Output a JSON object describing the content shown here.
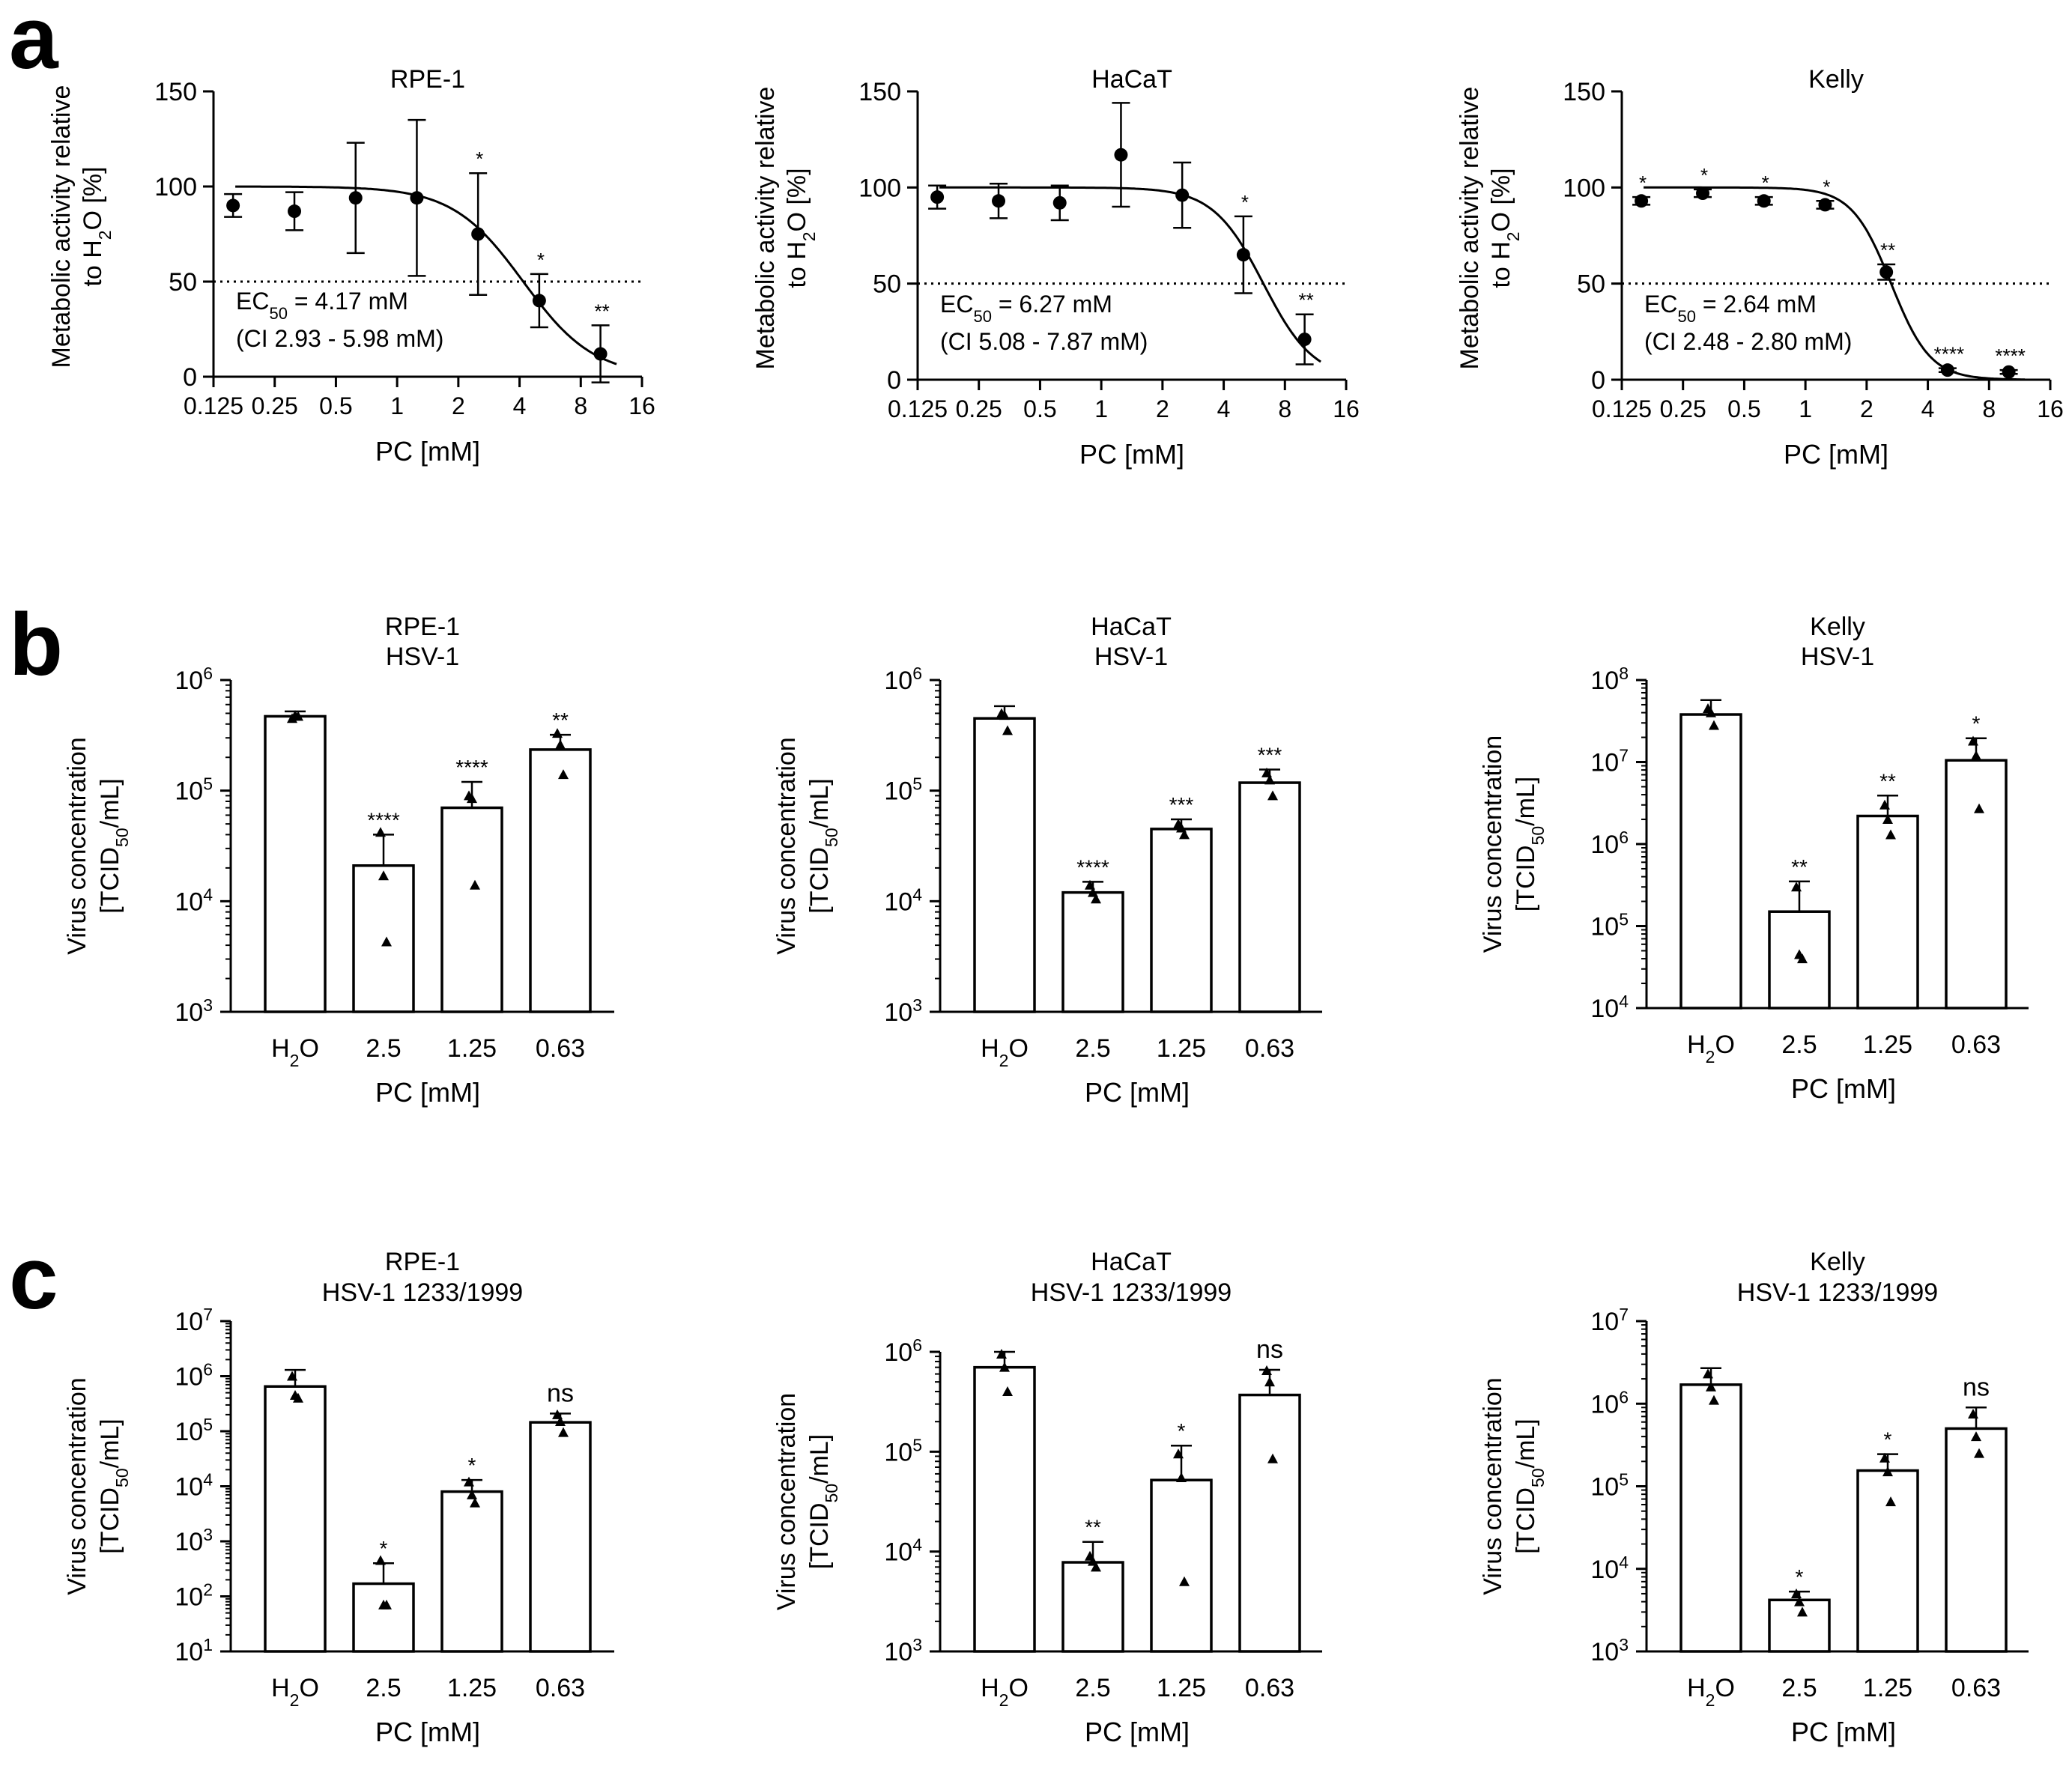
{
  "figure": {
    "panel_letters": [
      "a",
      "b",
      "c"
    ]
  },
  "chart_data": [
    {
      "type": "scatter",
      "panel": "a",
      "title": "RPE-1",
      "xlabel": "PC [mM]",
      "ylabel": "Metabolic activity relative to H2O [%]",
      "xscale": "log2",
      "xlim": [
        0.125,
        16
      ],
      "ylim": [
        0,
        150
      ],
      "xticks": [
        "0.125",
        "0.25",
        "0.5",
        "1",
        "2",
        "4",
        "8",
        "16"
      ],
      "yticks": [
        "0",
        "50",
        "100",
        "150"
      ],
      "x": [
        0.156,
        0.3125,
        0.625,
        1.25,
        2.5,
        5,
        10
      ],
      "y": [
        90,
        87,
        94,
        94,
        75,
        40,
        12
      ],
      "error_high": [
        6,
        10,
        29,
        41,
        32,
        14,
        15
      ],
      "error_low": [
        6,
        10,
        29,
        41,
        32,
        14,
        15
      ],
      "significance": [
        "",
        "",
        "",
        "",
        "*",
        "*",
        "**"
      ],
      "reference_line": 50,
      "fit": {
        "top": 100,
        "bottom": 0,
        "ec50": 4.17,
        "hill": 2.5
      },
      "annotation_line1": "EC50 = 4.17 mM",
      "annotation_line2": "(CI 2.93 - 5.98 mM)"
    },
    {
      "type": "scatter",
      "panel": "a",
      "title": "HaCaT",
      "xlabel": "PC [mM]",
      "ylabel": "Metabolic activity relative to H2O [%]",
      "xscale": "log2",
      "xlim": [
        0.125,
        16
      ],
      "ylim": [
        0,
        150
      ],
      "xticks": [
        "0.125",
        "0.25",
        "0.5",
        "1",
        "2",
        "4",
        "8",
        "16"
      ],
      "yticks": [
        "0",
        "50",
        "100",
        "150"
      ],
      "x": [
        0.156,
        0.3125,
        0.625,
        1.25,
        2.5,
        5,
        10
      ],
      "y": [
        95,
        93,
        92,
        117,
        96,
        65,
        21
      ],
      "error_high": [
        6,
        9,
        9,
        27,
        17,
        20,
        13
      ],
      "error_low": [
        6,
        9,
        9,
        27,
        17,
        20,
        13
      ],
      "significance": [
        "",
        "",
        "",
        "",
        "",
        "*",
        "**"
      ],
      "reference_line": 50,
      "fit": {
        "top": 100,
        "bottom": 0,
        "ec50": 6.27,
        "hill": 3.5
      },
      "annotation_line1": "EC50 = 6.27 mM",
      "annotation_line2": "(CI 5.08 - 7.87 mM)"
    },
    {
      "type": "scatter",
      "panel": "a",
      "title": "Kelly",
      "xlabel": "PC [mM]",
      "ylabel": "Metabolic activity relative to H2O [%]",
      "xscale": "log2",
      "xlim": [
        0.125,
        16
      ],
      "ylim": [
        0,
        150
      ],
      "xticks": [
        "0.125",
        "0.25",
        "0.5",
        "1",
        "2",
        "4",
        "8",
        "16"
      ],
      "yticks": [
        "0",
        "50",
        "100",
        "150"
      ],
      "x": [
        0.156,
        0.3125,
        0.625,
        1.25,
        2.5,
        5,
        10
      ],
      "y": [
        93,
        97,
        93,
        91,
        56,
        5,
        4
      ],
      "error_high": [
        2,
        2,
        2,
        2,
        4,
        1,
        1
      ],
      "error_low": [
        2,
        2,
        2,
        2,
        4,
        1,
        1
      ],
      "significance": [
        "*",
        "*",
        "*",
        "*",
        "**",
        "****",
        "****"
      ],
      "reference_line": 50,
      "fit": {
        "top": 100,
        "bottom": 0,
        "ec50": 2.64,
        "hill": 4.5
      },
      "annotation_line1": "EC50 = 2.64 mM",
      "annotation_line2": "(CI 2.48 - 2.80 mM)"
    },
    {
      "type": "bar",
      "panel": "b",
      "title_line1": "RPE-1",
      "title_line2": "HSV-1",
      "xlabel": "PC [mM]",
      "ylabel_line1": "Virus concentration",
      "ylabel_line2": "[TCID50/mL]",
      "yscale": "log10",
      "ylim_exp": [
        3,
        6
      ],
      "categories": [
        "H2O",
        "2.5",
        "1.25",
        "0.63"
      ],
      "values": [
        470000,
        21000,
        70000,
        235000
      ],
      "error_high": [
        520000,
        40000,
        120000,
        320000
      ],
      "points": [
        [
          450000,
          480000,
          470000
        ],
        [
          42000,
          17000,
          4300
        ],
        [
          90000,
          85000,
          14000
        ],
        [
          330000,
          260000,
          140000
        ]
      ],
      "significance": [
        "",
        "****",
        "****",
        "**"
      ]
    },
    {
      "type": "bar",
      "panel": "b",
      "title_line1": "HaCaT",
      "title_line2": "HSV-1",
      "xlabel": "PC [mM]",
      "ylabel_line1": "Virus concentration",
      "ylabel_line2": "[TCID50/mL]",
      "yscale": "log10",
      "ylim_exp": [
        3,
        6
      ],
      "categories": [
        "H2O",
        "2.5",
        "1.25",
        "0.63"
      ],
      "values": [
        450000,
        12000,
        45000,
        118000
      ],
      "error_high": [
        580000,
        15000,
        55000,
        155000
      ],
      "points": [
        [
          500000,
          480000,
          350000
        ],
        [
          14000,
          12000,
          10500
        ],
        [
          50000,
          46000,
          40000
        ],
        [
          145000,
          125000,
          90000
        ]
      ],
      "significance": [
        "",
        "****",
        "***",
        "***"
      ]
    },
    {
      "type": "bar",
      "panel": "b",
      "title_line1": "Kelly",
      "title_line2": "HSV-1",
      "xlabel": "PC [mM]",
      "ylabel_line1": "Virus concentration",
      "ylabel_line2": "[TCID50/mL]",
      "yscale": "log10",
      "ylim_exp": [
        4,
        8
      ],
      "categories": [
        "H2O",
        "2.5",
        "1.25",
        "0.63"
      ],
      "values": [
        38000000,
        150000,
        2200000,
        10500000
      ],
      "error_high": [
        57000000,
        350000,
        3900000,
        19500000
      ],
      "points": [
        [
          45000000,
          40000000,
          28000000
        ],
        [
          300000,
          45000,
          40000
        ],
        [
          3000000,
          2000000,
          1300000
        ],
        [
          18000000,
          12000000,
          2700000
        ]
      ],
      "significance": [
        "",
        "**",
        "**",
        "*"
      ]
    },
    {
      "type": "bar",
      "panel": "c",
      "title_line1": "RPE-1",
      "title_line2": "HSV-1 1233/1999",
      "xlabel": "PC [mM]",
      "ylabel_line1": "Virus concentration",
      "ylabel_line2": "[TCID50/mL]",
      "yscale": "log10",
      "ylim_exp": [
        1,
        7
      ],
      "categories": [
        "H2O",
        "2.5",
        "1.25",
        "0.63"
      ],
      "values": [
        650000,
        170,
        8000,
        145000
      ],
      "error_high": [
        1300000,
        400,
        13000,
        210000
      ],
      "points": [
        [
          1000000,
          450000,
          400000
        ],
        [
          450,
          70,
          70
        ],
        [
          12000,
          7000,
          5000
        ],
        [
          200000,
          150000,
          95000
        ]
      ],
      "significance": [
        "",
        "*",
        "*",
        "ns"
      ]
    },
    {
      "type": "bar",
      "panel": "c",
      "title_line1": "HaCaT",
      "title_line2": "HSV-1 1233/1999",
      "xlabel": "PC [mM]",
      "ylabel_line1": "Virus concentration",
      "ylabel_line2": "[TCID50/mL]",
      "yscale": "log10",
      "ylim_exp": [
        3,
        6
      ],
      "categories": [
        "H2O",
        "2.5",
        "1.25",
        "0.63"
      ],
      "values": [
        700000,
        7800,
        52000,
        370000
      ],
      "error_high": [
        1000000,
        12500,
        115000,
        660000
      ],
      "points": [
        [
          950000,
          700000,
          400000
        ],
        [
          9000,
          8000,
          7000
        ],
        [
          95000,
          55000,
          5000
        ],
        [
          650000,
          500000,
          85000
        ]
      ],
      "significance": [
        "",
        "**",
        "*",
        "ns"
      ]
    },
    {
      "type": "bar",
      "panel": "c",
      "title_line1": "Kelly",
      "title_line2": "HSV-1 1233/1999",
      "xlabel": "PC [mM]",
      "ylabel_line1": "Virus concentration",
      "ylabel_line2": "[TCID50/mL]",
      "yscale": "log10",
      "ylim_exp": [
        3,
        7
      ],
      "categories": [
        "H2O",
        "2.5",
        "1.25",
        "0.63"
      ],
      "values": [
        1700000,
        4200,
        155000,
        500000
      ],
      "error_high": [
        2700000,
        5300,
        245000,
        900000
      ],
      "points": [
        [
          2300000,
          1600000,
          1100000
        ],
        [
          5000,
          4000,
          3000
        ],
        [
          220000,
          150000,
          65000
        ],
        [
          750000,
          400000,
          250000
        ]
      ],
      "significance": [
        "",
        "*",
        "*",
        "ns"
      ]
    }
  ]
}
